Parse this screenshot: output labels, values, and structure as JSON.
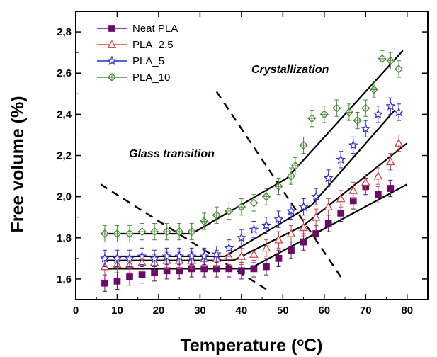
{
  "chart_data": {
    "type": "scatter",
    "xlabel": "Temperature (",
    "xlabel_unit_sup": "o",
    "xlabel_unit": "C)",
    "ylabel": "Free volume (%)",
    "xlim": [
      0,
      85
    ],
    "ylim": [
      1.5,
      2.9
    ],
    "xticks": [
      0,
      10,
      20,
      30,
      40,
      50,
      60,
      70,
      80
    ],
    "yticks": [
      1.6,
      1.8,
      2.0,
      2.2,
      2.4,
      2.6,
      2.8
    ],
    "xtick_labels": [
      "0",
      "10",
      "20",
      "30",
      "40",
      "50",
      "60",
      "70",
      "80"
    ],
    "ytick_labels": [
      "1,6",
      "1,8",
      "2,0",
      "2,2",
      "2,4",
      "2,6",
      "2,8"
    ],
    "grid": false,
    "legend_position": "top-left",
    "annotations": [
      "Glass transition",
      "Crystallization"
    ],
    "series": [
      {
        "name": "Neat PLA",
        "color": "#6a0a6a",
        "marker": "square",
        "error": 0.04,
        "x": [
          7,
          10,
          13,
          16,
          19,
          22,
          25,
          28,
          31,
          34,
          37,
          40,
          43,
          46,
          49,
          52,
          55,
          58,
          61,
          64,
          67,
          70,
          73,
          76
        ],
        "y": [
          1.58,
          1.59,
          1.61,
          1.62,
          1.63,
          1.64,
          1.64,
          1.65,
          1.65,
          1.65,
          1.65,
          1.64,
          1.65,
          1.66,
          1.7,
          1.74,
          1.78,
          1.82,
          1.87,
          1.92,
          1.98,
          2.05,
          2.01,
          2.04
        ]
      },
      {
        "name": "PLA_2.5",
        "color": "#d04040",
        "marker": "triangle",
        "error": 0.04,
        "x": [
          7,
          10,
          13,
          16,
          19,
          22,
          25,
          28,
          31,
          34,
          37,
          40,
          43,
          46,
          49,
          52,
          55,
          58,
          61,
          64,
          67,
          70,
          73,
          76,
          78
        ],
        "y": [
          1.66,
          1.67,
          1.67,
          1.68,
          1.68,
          1.69,
          1.69,
          1.69,
          1.7,
          1.7,
          1.71,
          1.71,
          1.72,
          1.75,
          1.79,
          1.82,
          1.85,
          1.9,
          1.95,
          1.99,
          2.03,
          2.07,
          2.1,
          2.17,
          2.26
        ]
      },
      {
        "name": "PLA_5",
        "color": "#2a2ad0",
        "marker": "star",
        "error": 0.04,
        "x": [
          7,
          10,
          13,
          16,
          19,
          22,
          25,
          28,
          31,
          34,
          37,
          40,
          43,
          46,
          49,
          52,
          55,
          58,
          61,
          64,
          67,
          70,
          73,
          76,
          78
        ],
        "y": [
          1.7,
          1.7,
          1.7,
          1.71,
          1.7,
          1.71,
          1.71,
          1.71,
          1.71,
          1.72,
          1.75,
          1.8,
          1.84,
          1.86,
          1.89,
          1.93,
          1.95,
          2.0,
          2.09,
          2.18,
          2.25,
          2.33,
          2.4,
          2.44,
          2.41
        ]
      },
      {
        "name": "PLA_10",
        "color": "#4a8a3a",
        "marker": "diamond",
        "error": 0.04,
        "x": [
          7,
          10,
          13,
          16,
          19,
          22,
          25,
          28,
          31,
          34,
          37,
          40,
          43,
          46,
          49,
          52,
          53,
          55,
          57,
          60,
          63,
          66,
          68,
          70,
          72,
          74,
          76,
          78
        ],
        "y": [
          1.82,
          1.82,
          1.82,
          1.83,
          1.83,
          1.83,
          1.83,
          1.83,
          1.88,
          1.91,
          1.93,
          1.95,
          1.97,
          2.0,
          2.05,
          2.1,
          2.15,
          2.25,
          2.38,
          2.4,
          2.43,
          2.41,
          2.37,
          2.43,
          2.52,
          2.67,
          2.66,
          2.62
        ]
      }
    ],
    "fit_lines": [
      {
        "x": [
          7,
          28,
          51,
          79
        ],
        "y": [
          1.82,
          1.82,
          2.09,
          2.71
        ]
      },
      {
        "x": [
          7,
          36,
          57,
          77
        ],
        "y": [
          1.71,
          1.71,
          1.96,
          2.42
        ]
      },
      {
        "x": [
          7,
          38,
          55,
          80
        ],
        "y": [
          1.69,
          1.69,
          1.86,
          2.26
        ]
      },
      {
        "x": [
          7,
          42,
          80
        ],
        "y": [
          1.65,
          1.65,
          2.06
        ]
      }
    ],
    "dashed_lines": [
      {
        "x": [
          6,
          46
        ],
        "y": [
          2.06,
          1.55
        ]
      },
      {
        "x": [
          34,
          64
        ],
        "y": [
          2.51,
          1.61
        ]
      }
    ]
  }
}
